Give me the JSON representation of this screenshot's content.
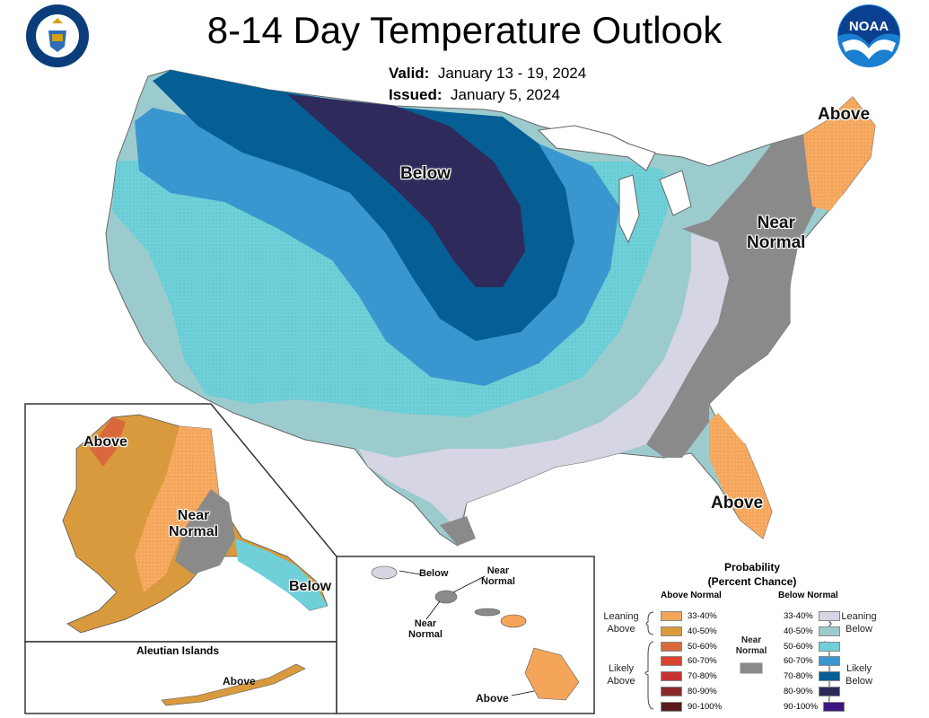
{
  "header": {
    "title": "8-14 Day Temperature Outlook",
    "valid_label": "Valid:",
    "valid_value": "January 13 - 19, 2024",
    "issued_label": "Issued:",
    "issued_value": "January 5, 2024"
  },
  "logos": {
    "left": "commerce-seal-icon",
    "right": "noaa-logo-icon"
  },
  "map_labels": {
    "conus_below": "Below",
    "conus_near_normal_1": "Near",
    "conus_near_normal_2": "Normal",
    "northeast_above": "Above",
    "florida_above": "Above",
    "alaska_above": "Above",
    "alaska_near_1": "Near",
    "alaska_near_2": "Normal",
    "alaska_below": "Below",
    "aleutian_title": "Aleutian Islands",
    "aleutian_above": "Above",
    "hawaii_below": "Below",
    "hawaii_near_a_1": "Near",
    "hawaii_near_a_2": "Normal",
    "hawaii_near_b_1": "Near",
    "hawaii_near_b_2": "Normal",
    "hawaii_above": "Above"
  },
  "legend": {
    "title_1": "Probability",
    "title_2": "(Percent Chance)",
    "above_header": "Above Normal",
    "below_header": "Below Normal",
    "near_1": "Near",
    "near_2": "Normal",
    "leaning_above_1": "Leaning",
    "leaning_above_2": "Above",
    "likely_above_1": "Likely",
    "likely_above_2": "Above",
    "leaning_below_1": "Leaning",
    "leaning_below_2": "Below",
    "likely_below_1": "Likely",
    "likely_below_2": "Below",
    "above_rows": [
      {
        "label": "33-40%",
        "color": "#f5a55a"
      },
      {
        "label": "40-50%",
        "color": "#d99a3d"
      },
      {
        "label": "50-60%",
        "color": "#d9693c"
      },
      {
        "label": "60-70%",
        "color": "#d9432f"
      },
      {
        "label": "70-80%",
        "color": "#c73232"
      },
      {
        "label": "80-90%",
        "color": "#8b2a2a"
      },
      {
        "label": "90-100%",
        "color": "#5a1c1c"
      }
    ],
    "below_rows": [
      {
        "label": "33-40%",
        "color": "#d5d5e3"
      },
      {
        "label": "40-50%",
        "color": "#9ccbce"
      },
      {
        "label": "50-60%",
        "color": "#6fd0d8"
      },
      {
        "label": "60-70%",
        "color": "#3a96cf"
      },
      {
        "label": "70-80%",
        "color": "#065f94"
      },
      {
        "label": "80-90%",
        "color": "#2e2a5c"
      },
      {
        "label": "90-100%",
        "color": "#3d1580"
      }
    ],
    "near_color": "#8a8a8a"
  }
}
